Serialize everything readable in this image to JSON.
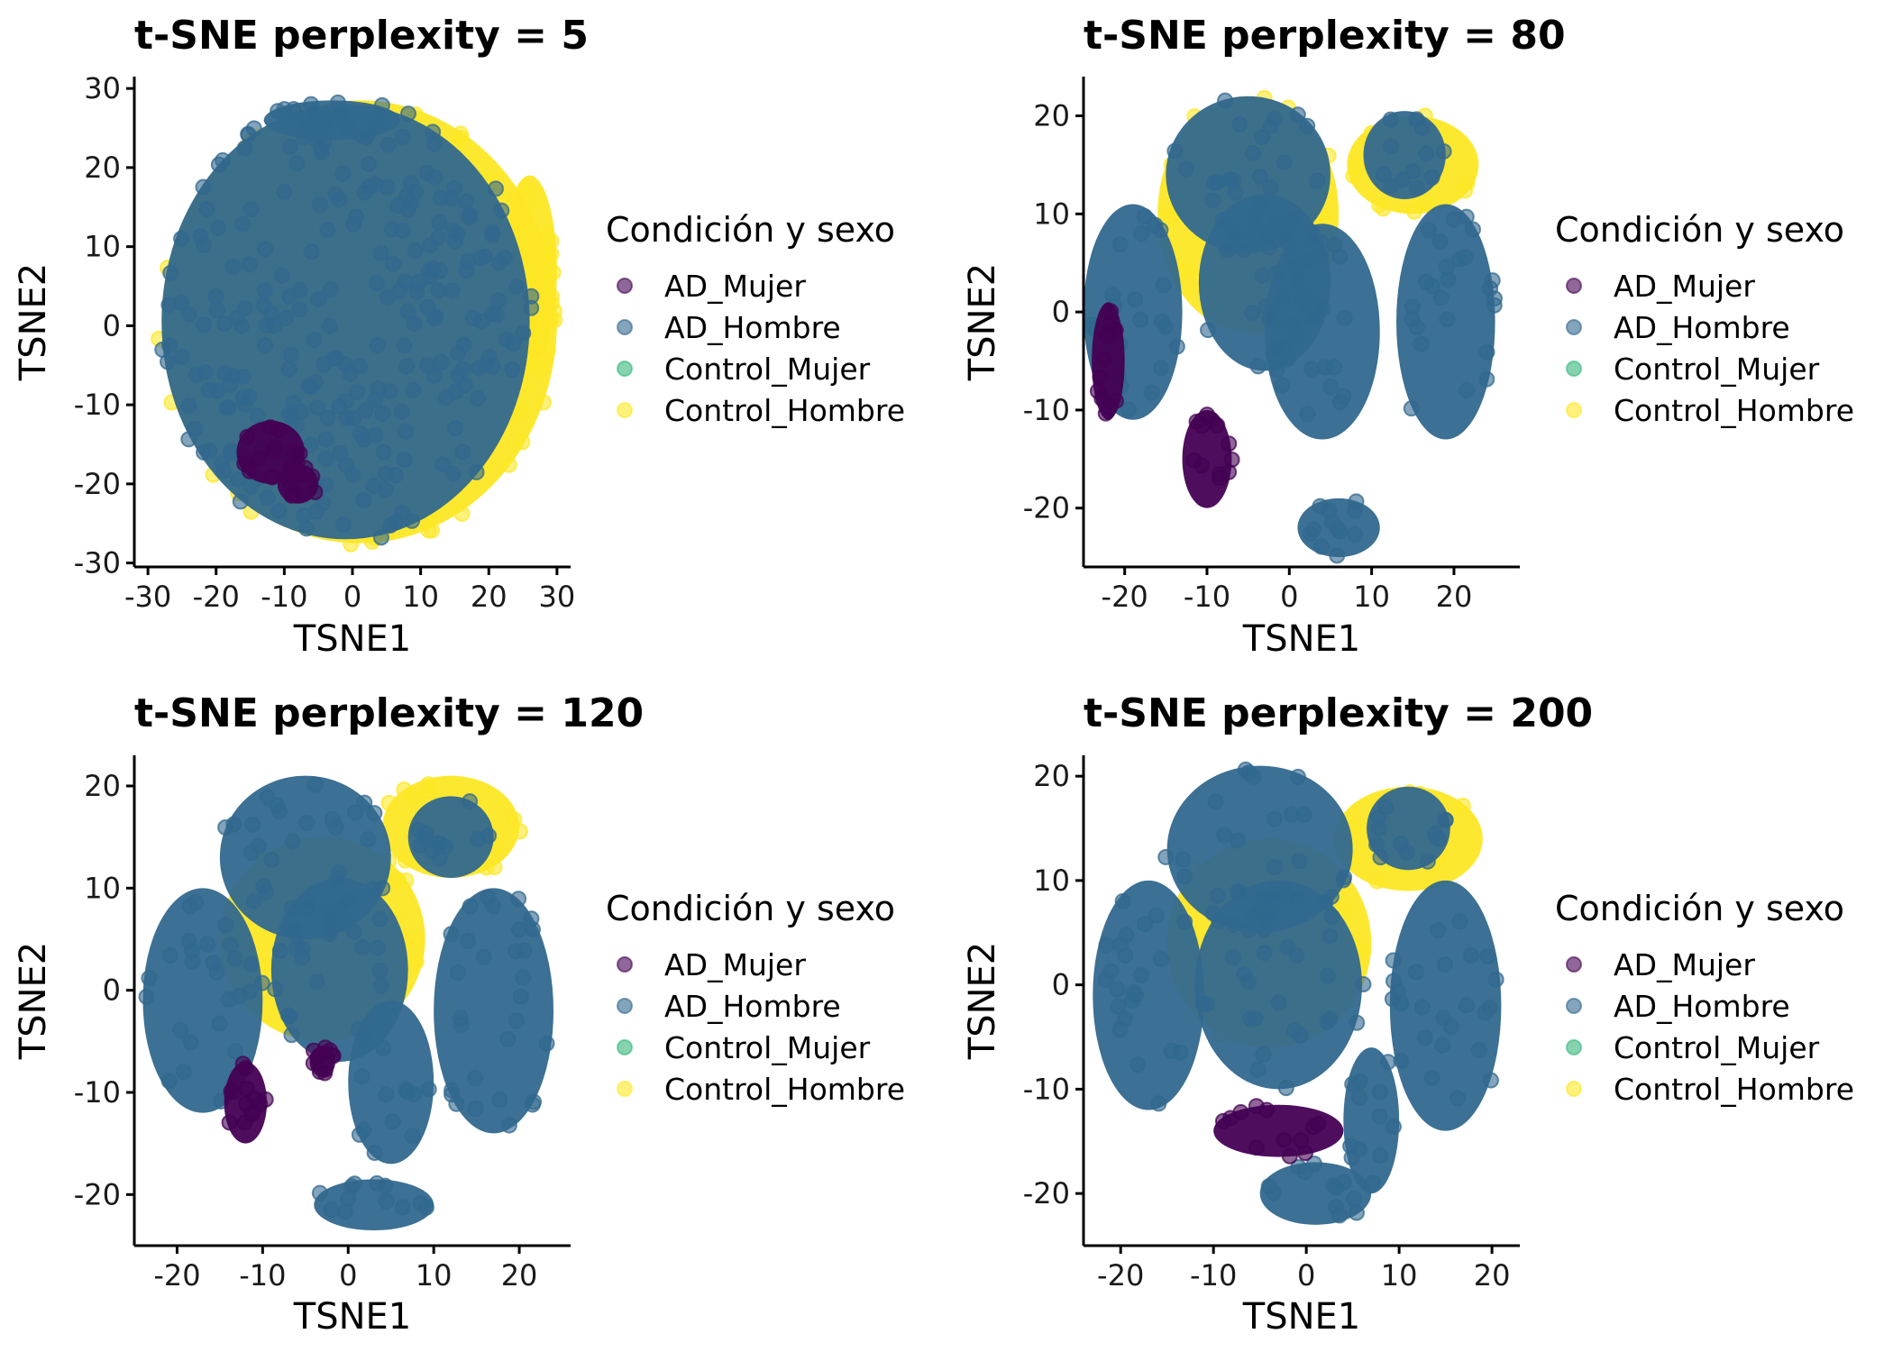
{
  "colors": {
    "AD_Mujer": "#440154",
    "AD_Hombre": "#31688e",
    "Control_Mujer": "#35b779",
    "Control_Hombre": "#fde725",
    "axis": "#000000",
    "background": "#ffffff"
  },
  "chart_data": [
    {
      "type": "scatter",
      "title": "t-SNE perplexity = 5",
      "xlabel": "TSNE1",
      "ylabel": "TSNE2",
      "xlim": [
        -32,
        32
      ],
      "ylim": [
        -30.5,
        31.5
      ],
      "xticks": [
        -30,
        -20,
        -10,
        0,
        10,
        20,
        30
      ],
      "xtick_labels": [
        "-30",
        "-20",
        "-10",
        "0",
        "10",
        "20",
        "30"
      ],
      "yticks": [
        -30,
        -20,
        -10,
        0,
        10,
        20,
        30
      ],
      "ytick_labels": [
        "-30",
        "-20",
        "-10",
        "0",
        "10",
        "20",
        "30"
      ],
      "legend_title": "Condición y sexo",
      "legend_position": "right",
      "series_names": [
        "AD_Mujer",
        "AD_Hombre",
        "Control_Mujer",
        "Control_Hombre"
      ],
      "clusters": [
        {
          "series": "Control_Hombre",
          "x": 1,
          "y": 0.5,
          "rx": 29,
          "ry": 28
        },
        {
          "series": "Control_Hombre",
          "x": 26,
          "y": 7,
          "rx": 4,
          "ry": 12
        },
        {
          "series": "AD_Hombre",
          "x": -1,
          "y": 0.5,
          "rx": 27,
          "ry": 27.5
        },
        {
          "series": "AD_Hombre",
          "x": -3,
          "y": 26,
          "rx": 10,
          "ry": 2.5
        },
        {
          "series": "AD_Mujer",
          "x": -12,
          "y": -16,
          "rx": 5,
          "ry": 4
        },
        {
          "series": "AD_Mujer",
          "x": -8,
          "y": -20,
          "rx": 3,
          "ry": 2.5
        }
      ]
    },
    {
      "type": "scatter",
      "title": "t-SNE perplexity = 80",
      "xlabel": "TSNE1",
      "ylabel": "TSNE2",
      "xlim": [
        -25,
        28
      ],
      "ylim": [
        -26,
        24
      ],
      "xticks": [
        -20,
        -10,
        0,
        10,
        20
      ],
      "xtick_labels": [
        "-20",
        "-10",
        "0",
        "10",
        "20"
      ],
      "yticks": [
        -20,
        -10,
        0,
        10,
        20
      ],
      "ytick_labels": [
        "-20",
        "-10",
        "0",
        "10",
        "20"
      ],
      "legend_title": "Condición y sexo",
      "legend_position": "right",
      "series_names": [
        "AD_Mujer",
        "AD_Hombre",
        "Control_Mujer",
        "Control_Hombre"
      ],
      "clusters": [
        {
          "series": "Control_Hombre",
          "x": 15,
          "y": 15,
          "rx": 8,
          "ry": 5
        },
        {
          "series": "Control_Hombre",
          "x": -5,
          "y": 10,
          "rx": 11,
          "ry": 12
        },
        {
          "series": "AD_Hombre",
          "x": -5,
          "y": 14,
          "rx": 10,
          "ry": 8
        },
        {
          "series": "AD_Hombre",
          "x": -3,
          "y": 3,
          "rx": 8,
          "ry": 9
        },
        {
          "series": "AD_Hombre",
          "x": -19,
          "y": 0,
          "rx": 6,
          "ry": 11
        },
        {
          "series": "AD_Hombre",
          "x": 4,
          "y": -2,
          "rx": 7,
          "ry": 11
        },
        {
          "series": "AD_Hombre",
          "x": 19,
          "y": -1,
          "rx": 6,
          "ry": 12
        },
        {
          "series": "AD_Hombre",
          "x": 14,
          "y": 16,
          "rx": 5,
          "ry": 4.5
        },
        {
          "series": "AD_Hombre",
          "x": 6,
          "y": -22,
          "rx": 5,
          "ry": 3
        },
        {
          "series": "AD_Mujer",
          "x": -10,
          "y": -15,
          "rx": 3,
          "ry": 5
        },
        {
          "series": "AD_Mujer",
          "x": -22,
          "y": -5,
          "rx": 2,
          "ry": 6
        }
      ]
    },
    {
      "type": "scatter",
      "title": "t-SNE perplexity = 120",
      "xlabel": "TSNE1",
      "ylabel": "TSNE2",
      "xlim": [
        -25,
        26
      ],
      "ylim": [
        -25,
        23
      ],
      "xticks": [
        -20,
        -10,
        0,
        10,
        20
      ],
      "xtick_labels": [
        "-20",
        "-10",
        "0",
        "10",
        "20"
      ],
      "yticks": [
        -20,
        -10,
        0,
        10,
        20
      ],
      "ytick_labels": [
        "-20",
        "-10",
        "0",
        "10",
        "20"
      ],
      "legend_title": "Condición y sexo",
      "legend_position": "right",
      "series_names": [
        "AD_Mujer",
        "AD_Hombre",
        "Control_Mujer",
        "Control_Hombre"
      ],
      "clusters": [
        {
          "series": "Control_Hombre",
          "x": 12,
          "y": 16,
          "rx": 8,
          "ry": 5
        },
        {
          "series": "Control_Hombre",
          "x": -3,
          "y": 5,
          "rx": 12,
          "ry": 10
        },
        {
          "series": "AD_Hombre",
          "x": -5,
          "y": 13,
          "rx": 10,
          "ry": 8
        },
        {
          "series": "AD_Hombre",
          "x": -1,
          "y": 2,
          "rx": 8,
          "ry": 9
        },
        {
          "series": "AD_Hombre",
          "x": -17,
          "y": -1,
          "rx": 7,
          "ry": 11
        },
        {
          "series": "AD_Hombre",
          "x": 17,
          "y": -2,
          "rx": 7,
          "ry": 12
        },
        {
          "series": "AD_Hombre",
          "x": 5,
          "y": -9,
          "rx": 5,
          "ry": 8
        },
        {
          "series": "AD_Hombre",
          "x": 12,
          "y": 15,
          "rx": 5,
          "ry": 4
        },
        {
          "series": "AD_Hombre",
          "x": 3,
          "y": -21,
          "rx": 7,
          "ry": 2.5
        },
        {
          "series": "AD_Mujer",
          "x": -12,
          "y": -11,
          "rx": 2.5,
          "ry": 4
        },
        {
          "series": "AD_Mujer",
          "x": -3,
          "y": -7,
          "rx": 1.5,
          "ry": 1.5
        }
      ]
    },
    {
      "type": "scatter",
      "title": "t-SNE perplexity = 200",
      "xlabel": "TSNE1",
      "ylabel": "TSNE2",
      "xlim": [
        -24,
        23
      ],
      "ylim": [
        -25,
        22
      ],
      "xticks": [
        -20,
        -10,
        0,
        10,
        20
      ],
      "xtick_labels": [
        "-20",
        "-10",
        "0",
        "10",
        "20"
      ],
      "yticks": [
        -20,
        -10,
        0,
        10,
        20
      ],
      "ytick_labels": [
        "-20",
        "-10",
        "0",
        "10",
        "20"
      ],
      "legend_title": "Condición y sexo",
      "legend_position": "right",
      "series_names": [
        "AD_Mujer",
        "AD_Hombre",
        "Control_Mujer",
        "Control_Hombre"
      ],
      "clusters": [
        {
          "series": "Control_Hombre",
          "x": 11,
          "y": 14,
          "rx": 8,
          "ry": 5
        },
        {
          "series": "Control_Hombre",
          "x": -4,
          "y": 4,
          "rx": 11,
          "ry": 10
        },
        {
          "series": "AD_Hombre",
          "x": -5,
          "y": 13,
          "rx": 10,
          "ry": 8
        },
        {
          "series": "AD_Hombre",
          "x": -3,
          "y": 0,
          "rx": 9,
          "ry": 10
        },
        {
          "series": "AD_Hombre",
          "x": -17,
          "y": -1,
          "rx": 6,
          "ry": 11
        },
        {
          "series": "AD_Hombre",
          "x": 15,
          "y": -2,
          "rx": 6,
          "ry": 12
        },
        {
          "series": "AD_Hombre",
          "x": 7,
          "y": -13,
          "rx": 3,
          "ry": 7
        },
        {
          "series": "AD_Hombre",
          "x": 11,
          "y": 15,
          "rx": 4.5,
          "ry": 4
        },
        {
          "series": "AD_Hombre",
          "x": 1,
          "y": -20,
          "rx": 6,
          "ry": 3
        },
        {
          "series": "AD_Mujer",
          "x": -3,
          "y": -14,
          "rx": 7,
          "ry": 2.5
        }
      ]
    }
  ]
}
